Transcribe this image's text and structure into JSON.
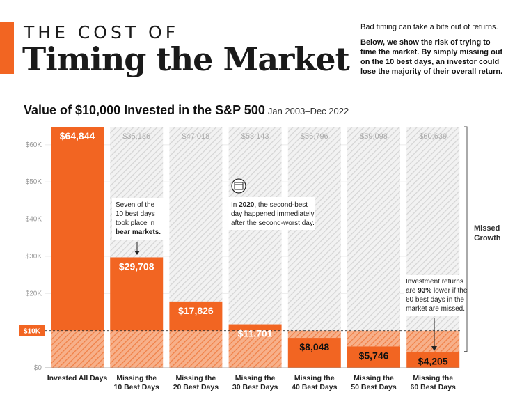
{
  "header": {
    "title_top": "THE COST OF",
    "title_main": "Timing the Market",
    "sub1": "Bad timing can take a bite out of returns.",
    "sub2": "Below, we show the risk of trying to time the market. By simply missing out on the 10 best days, an investor could lose the majority of their overall return."
  },
  "chart_title": {
    "main": "Value of $10,000 Invested in the S&P 500",
    "range": "Jan 2003–Dec 2022"
  },
  "chart_data": {
    "type": "bar",
    "title": "Value of $10,000 Invested in the S&P 500",
    "categories": [
      [
        "Invested All Days",
        ""
      ],
      [
        "Missing the",
        "10 Best Days"
      ],
      [
        "Missing the",
        "20 Best Days"
      ],
      [
        "Missing the",
        "30 Best Days"
      ],
      [
        "Missing the",
        "40 Best Days"
      ],
      [
        "Missing the",
        "50 Best Days"
      ],
      [
        "Missing the",
        "60 Best Days"
      ]
    ],
    "values": [
      64844,
      29708,
      17826,
      11701,
      8048,
      5746,
      4205
    ],
    "value_labels": [
      "$64,844",
      "$29,708",
      "$17,826",
      "$11,701",
      "$8,048",
      "$5,746",
      "$4,205"
    ],
    "missed_values": [
      null,
      35136,
      47018,
      53143,
      56796,
      59098,
      60639
    ],
    "missed_labels": [
      "",
      "$35,136",
      "$47,018",
      "$53,143",
      "$56,796",
      "$59,098",
      "$60,639"
    ],
    "yticks": [
      0,
      10000,
      20000,
      30000,
      40000,
      50000,
      60000
    ],
    "ytick_labels": [
      "$0",
      "$10K",
      "$20K",
      "$30K",
      "$40K",
      "$50K",
      "$60K"
    ],
    "ylim": [
      0,
      64844
    ],
    "baseline_value": 10000,
    "baseline_label": "$10K",
    "bracket_label": [
      "Missed",
      "Growth"
    ],
    "annotations": {
      "bear": [
        "Seven of the",
        "10 best days",
        "took place in",
        "bear markets."
      ],
      "year_bold": "2020",
      "year_line1_rest": ", the second-best",
      "year_line1_prefix": "In ",
      "year_lines": [
        "day happened immediately",
        "after the second-worst day."
      ],
      "returns_lines": [
        "Investment returns",
        "are ",
        "93%",
        " lower if the",
        "60 best days in the",
        "market are missed."
      ]
    },
    "colors": {
      "orange": "#f26522",
      "orange_light": "#f5a37a",
      "hatch_bg": "#f2f2f2",
      "hatch_line": "#d6d6d6",
      "axis_text": "#999999"
    }
  }
}
